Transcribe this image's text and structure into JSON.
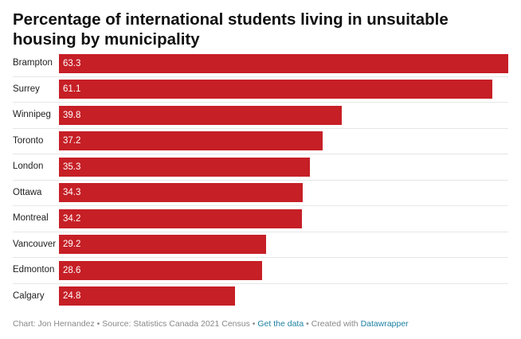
{
  "title": "Percentage of international students living in unsuitable housing by municipality",
  "footer": {
    "chart_by": "Chart: Jon Hernandez",
    "sep1": " • ",
    "source": "Source: Statistics Canada 2021 Census",
    "sep2": " • ",
    "get_data": "Get the data",
    "sep3": " • ",
    "created_with": "Created with ",
    "datawrapper": "Datawrapper"
  },
  "colors": {
    "bar": "#c61f26",
    "link": "#1d81a2"
  },
  "chart_data": {
    "type": "bar",
    "orientation": "horizontal",
    "title": "Percentage of international students living in unsuitable housing by municipality",
    "categories": [
      "Brampton",
      "Surrey",
      "Winnipeg",
      "Toronto",
      "London",
      "Ottawa",
      "Montreal",
      "Vancouver",
      "Edmonton",
      "Calgary"
    ],
    "values": [
      63.3,
      61.1,
      39.8,
      37.2,
      35.3,
      34.3,
      34.2,
      29.2,
      28.6,
      24.8
    ],
    "value_labels": [
      "63.3",
      "61.1",
      "39.8",
      "37.2",
      "35.3",
      "34.3",
      "34.2",
      "29.2",
      "28.6",
      "24.8"
    ],
    "xlim": [
      0,
      63.3
    ],
    "grid": false,
    "data_labels": "inside-left"
  }
}
